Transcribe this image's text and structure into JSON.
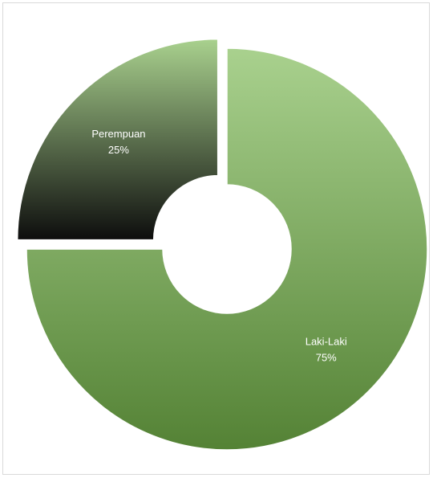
{
  "chart_data": {
    "type": "pie",
    "variant": "doughnut",
    "title": "",
    "legend": "none",
    "start_angle_deg": 0,
    "slices": [
      {
        "label": "Laki-Laki",
        "value": 75,
        "value_label": "75%",
        "color_top": "#a9d18e",
        "color_bottom": "#548235",
        "exploded": false
      },
      {
        "label": "Perempuan",
        "value": 25,
        "value_label": "25%",
        "color_top": "#a9d18e",
        "color_bottom": "#0d0d0d",
        "exploded": true
      }
    ]
  }
}
